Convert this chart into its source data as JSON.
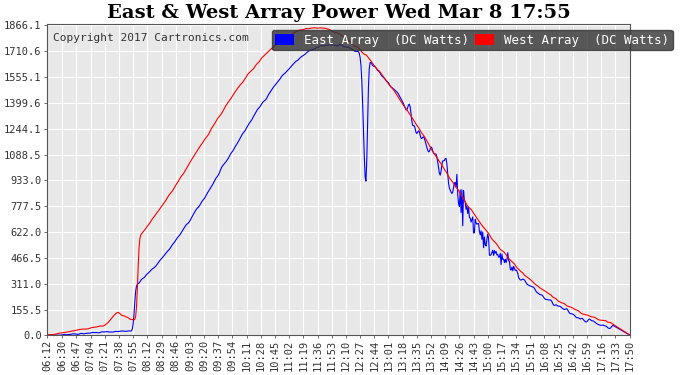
{
  "title": "East & West Array Power Wed Mar 8 17:55",
  "copyright": "Copyright 2017 Cartronics.com",
  "legend_east": "East Array  (DC Watts)",
  "legend_west": "West Array  (DC Watts)",
  "east_color": "#0000ff",
  "west_color": "#ff0000",
  "bg_color": "#ffffff",
  "plot_bg_color": "#e8e8e8",
  "grid_color": "#ffffff",
  "yticks": [
    0.0,
    155.5,
    311.0,
    466.5,
    622.0,
    777.5,
    933.0,
    1088.5,
    1244.1,
    1399.6,
    1555.1,
    1710.6,
    1866.1
  ],
  "ymax": 1866.1,
  "ymin": 0.0,
  "title_fontsize": 14,
  "tick_fontsize": 7.5,
  "legend_fontsize": 9,
  "copyright_fontsize": 8,
  "num_points": 700
}
